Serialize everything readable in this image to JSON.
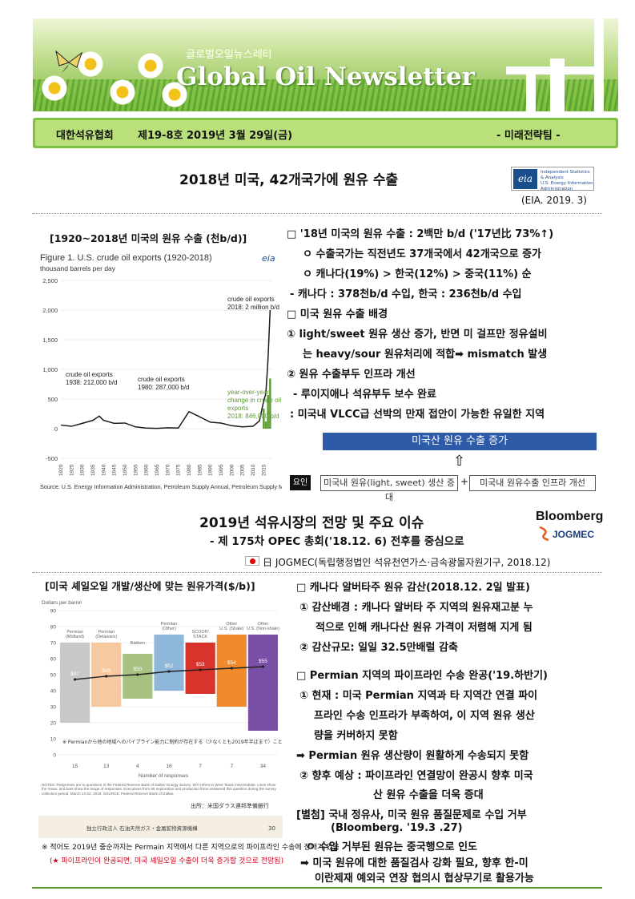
{
  "banner": {
    "subtitle": "글로벌오일뉴스레터",
    "title": "Global Oil Newsletter"
  },
  "info": {
    "org": "대한석유협회",
    "issue": "제19-8호  2019년  3월 29일(금)",
    "dept": "- 미래전략팀 -"
  },
  "article1": {
    "title": "2018년 미국, 42개국가에 원유 수출",
    "source": "(EIA. 2019. 3)",
    "logo_text": "eia",
    "logo_sub": [
      "Independent Statistics & Analysis",
      "U.S. Energy Information",
      "Administration"
    ],
    "chart_caption": "[1920~2018년 미국의 원유 수출 (천b/d)]",
    "lines": [
      "□ '18년 미국의 원유 수출 : 2백만 b/d ('17년比 73%↑)",
      "ㅇ 수출국가는 직전년도 37개국에서 42개국으로 증가",
      "ㅇ 캐나다(19%) > 한국(12%)   > 중국(11%)  순",
      "- 캐나다 : 378천b/d 수입, 한국 : 236천b/d 수입",
      "□ 미국 원유 수출 배경",
      "① light/sweet 원유 생산 증가, 반면 미 걸프만 정유설비",
      "는 heavy/sour 원유처리에 적합➡ mismatch 발생",
      "② 원유 수출부두 인프라 개선",
      "- 루이지애나 석유부두 보수 완료",
      ": 미국내 VLCC급 선박의 만재 접안이 가능한 유일한 지역"
    ],
    "flow": {
      "top": "미국산 원유 수출 증가",
      "arrow": "⇧",
      "label": "요인",
      "box1": "미국내 원유(light, sweet) 생산 증대",
      "plus": "+",
      "box2": "미국내 원유수출 인프라 개선"
    }
  },
  "chart1": {
    "type": "line",
    "title": "Figure 1. U.S. crude oil exports (1920-2018)",
    "unit": "thousand barrels per day",
    "source": "Source: U.S. Energy Information Administration, Petroleum Supply Annual, Petroleum Supply Monthly",
    "ylim": [
      -500,
      2500
    ],
    "yticks": [
      "2,500",
      "2,000",
      "1,500",
      "1,000",
      "500",
      "0",
      "-500"
    ],
    "xticks": [
      "1920",
      "1925",
      "1930",
      "1935",
      "1940",
      "1945",
      "1950",
      "1955",
      "1960",
      "1965",
      "1970",
      "1975",
      "1980",
      "1985",
      "1990",
      "1995",
      "2000",
      "2005",
      "2010",
      "2015"
    ],
    "annotations": [
      {
        "text": "crude oil exports",
        "text2": "1938: 212,000 b/d"
      },
      {
        "text": "crude oil exports",
        "text2": "1980: 287,000 b/d"
      },
      {
        "text": "crude oil exports",
        "text2": "2018: 2 million b/d"
      },
      {
        "text": "year-over-year",
        "text2": "change in crude oil",
        "text3": "exports",
        "text4": "2018: 846,000 b/d"
      }
    ],
    "series": [
      {
        "name": "crude oil exports",
        "color": "#1a1a1a",
        "x": [
          1920,
          1925,
          1930,
          1935,
          1938,
          1940,
          1945,
          1950,
          1955,
          1960,
          1965,
          1970,
          1975,
          1980,
          1985,
          1990,
          1995,
          2000,
          2005,
          2010,
          2013,
          2015,
          2016,
          2017,
          2018
        ],
        "y": [
          60,
          40,
          90,
          140,
          212,
          140,
          90,
          95,
          30,
          10,
          5,
          15,
          10,
          287,
          200,
          110,
          95,
          50,
          30,
          40,
          130,
          470,
          590,
          1160,
          2000
        ]
      },
      {
        "name": "year-over-year change in crude oil exports",
        "color": "#5a9b2e",
        "x": [
          2015,
          2016,
          2017,
          2018
        ],
        "y": [
          340,
          120,
          570,
          846
        ]
      }
    ]
  },
  "article2": {
    "title": "2019년 석유시장의 전망 및 주요 이슈",
    "subtitle": "- 제 175차 OPEC 총회('18.12. 6) 전후를 중심으로",
    "source": "日 JOGMEC(독립행정법인 석유천연가스·금속광물자원기구, 2018.12)",
    "logo1": "Bloomberg",
    "logo2": "JOGMEC",
    "chart_caption": "[미국 셰일오일 개발/생산에 맞는 원유가격($/b)]",
    "chart_note1": "※ 적어도 2019년 중순까지는 Permain 지역에서 다른 지역으로의 파이프라인 수송에 장애가 있음",
    "chart_note2": "(★ 파이프라인이 완공되면, 미국 셰일오일 수출이 더욱 증가할 것으로 전망됨)",
    "lines": [
      "□ 캐나다 알버타주 원유 감산(2018.12. 2일 발표)",
      "① 감산배경 : 캐나다 알버타 주 지역의 원유재고분 누",
      "적으로 인해 캐나다산 원유 가격이 저렴해 지게 됨",
      "② 감산규모:  일일 32.5만배럴 감축",
      "□ Permian 지역의 파이프라인 수송 완공('19.하반기)",
      "① 현재 : 미국 Permian 지역과 타 지역간 연결 파이",
      "프라인 수송 인프라가 부족하여, 이 지역 원유 생산",
      "량을 커버하지 못함",
      "➡ Permian 원유 생산량이 원활하게 수송되지 못함",
      "② 향후 예상 : 파이프라인 연결망이 완공시 향후 미국",
      "산 원유 수출을 더욱 증대",
      "[별첨] 국내 정유사, 미국 원유 품질문제로 수입 거부",
      "(Bloomberg. '19.3 .27)",
      "ㅇ 수입 거부된 원유는 중국행으로 인도",
      "➡ 미국 원유에 대한 품질검사 강화 필요, 향후 한-미",
      "이란제재 예외국 연장 협의시 협상무기로 활용가능"
    ]
  },
  "chart2": {
    "type": "bar",
    "ylabel": "Dollars per barrel",
    "xlabel": "Number of responses",
    "ylim": [
      0,
      90
    ],
    "yticks": [
      "90",
      "80",
      "70",
      "60",
      "50",
      "40",
      "30",
      "20",
      "10",
      "0"
    ],
    "categories": [
      "Permian (Midland)",
      "Permian (Delaware)",
      "Bakken",
      "Permian (Other)",
      "SCOOP/ STACK",
      "Other U.S. (Shale)",
      "Other U.S. (Non-shale)"
    ],
    "responses": [
      "15",
      "13",
      "4",
      "16",
      "7",
      "7",
      "34"
    ],
    "mean": [
      47,
      49,
      50,
      52,
      53,
      54,
      55
    ],
    "mean_labels": [
      "$47",
      "$49",
      "$50",
      "$52",
      "$53",
      "$54",
      "$55"
    ],
    "low": [
      20,
      30,
      35,
      40,
      38,
      30,
      15
    ],
    "high": [
      70,
      70,
      63,
      75,
      70,
      75,
      75
    ],
    "colors": [
      "#c8c8c8",
      "#f6c9a0",
      "#a7c280",
      "#8fb7d9",
      "#d9342b",
      "#f08a2c",
      "#7a4fa6"
    ],
    "jp_note": "※  Permianから他の地域へのパイプライン能力に制約が存在する（少なくとも2019年半ばまで）ことには注意する必要あり",
    "notes": "NOTES: Responses are to questions in the Federal Reserve Bank of Dallas' Energy Survey. WTI refers to West Texas Intermediate. Lines show the mean, and bars show the range of responses. Executives from 65 exploration and production firms answered this question during the survey collection period, March 14-22, 2018. SOURCE: Federal Reserve Bank of Dallas.",
    "source_jp": "出所：米国ダラス連邦準備銀行",
    "footer_jp": "独立行政法人 石油天然ガス・金属鉱物資源機構",
    "page_no": "30"
  },
  "colors": {
    "green": "#7dc242",
    "navy": "#2e5ba8",
    "red_note": "#d0021b"
  }
}
